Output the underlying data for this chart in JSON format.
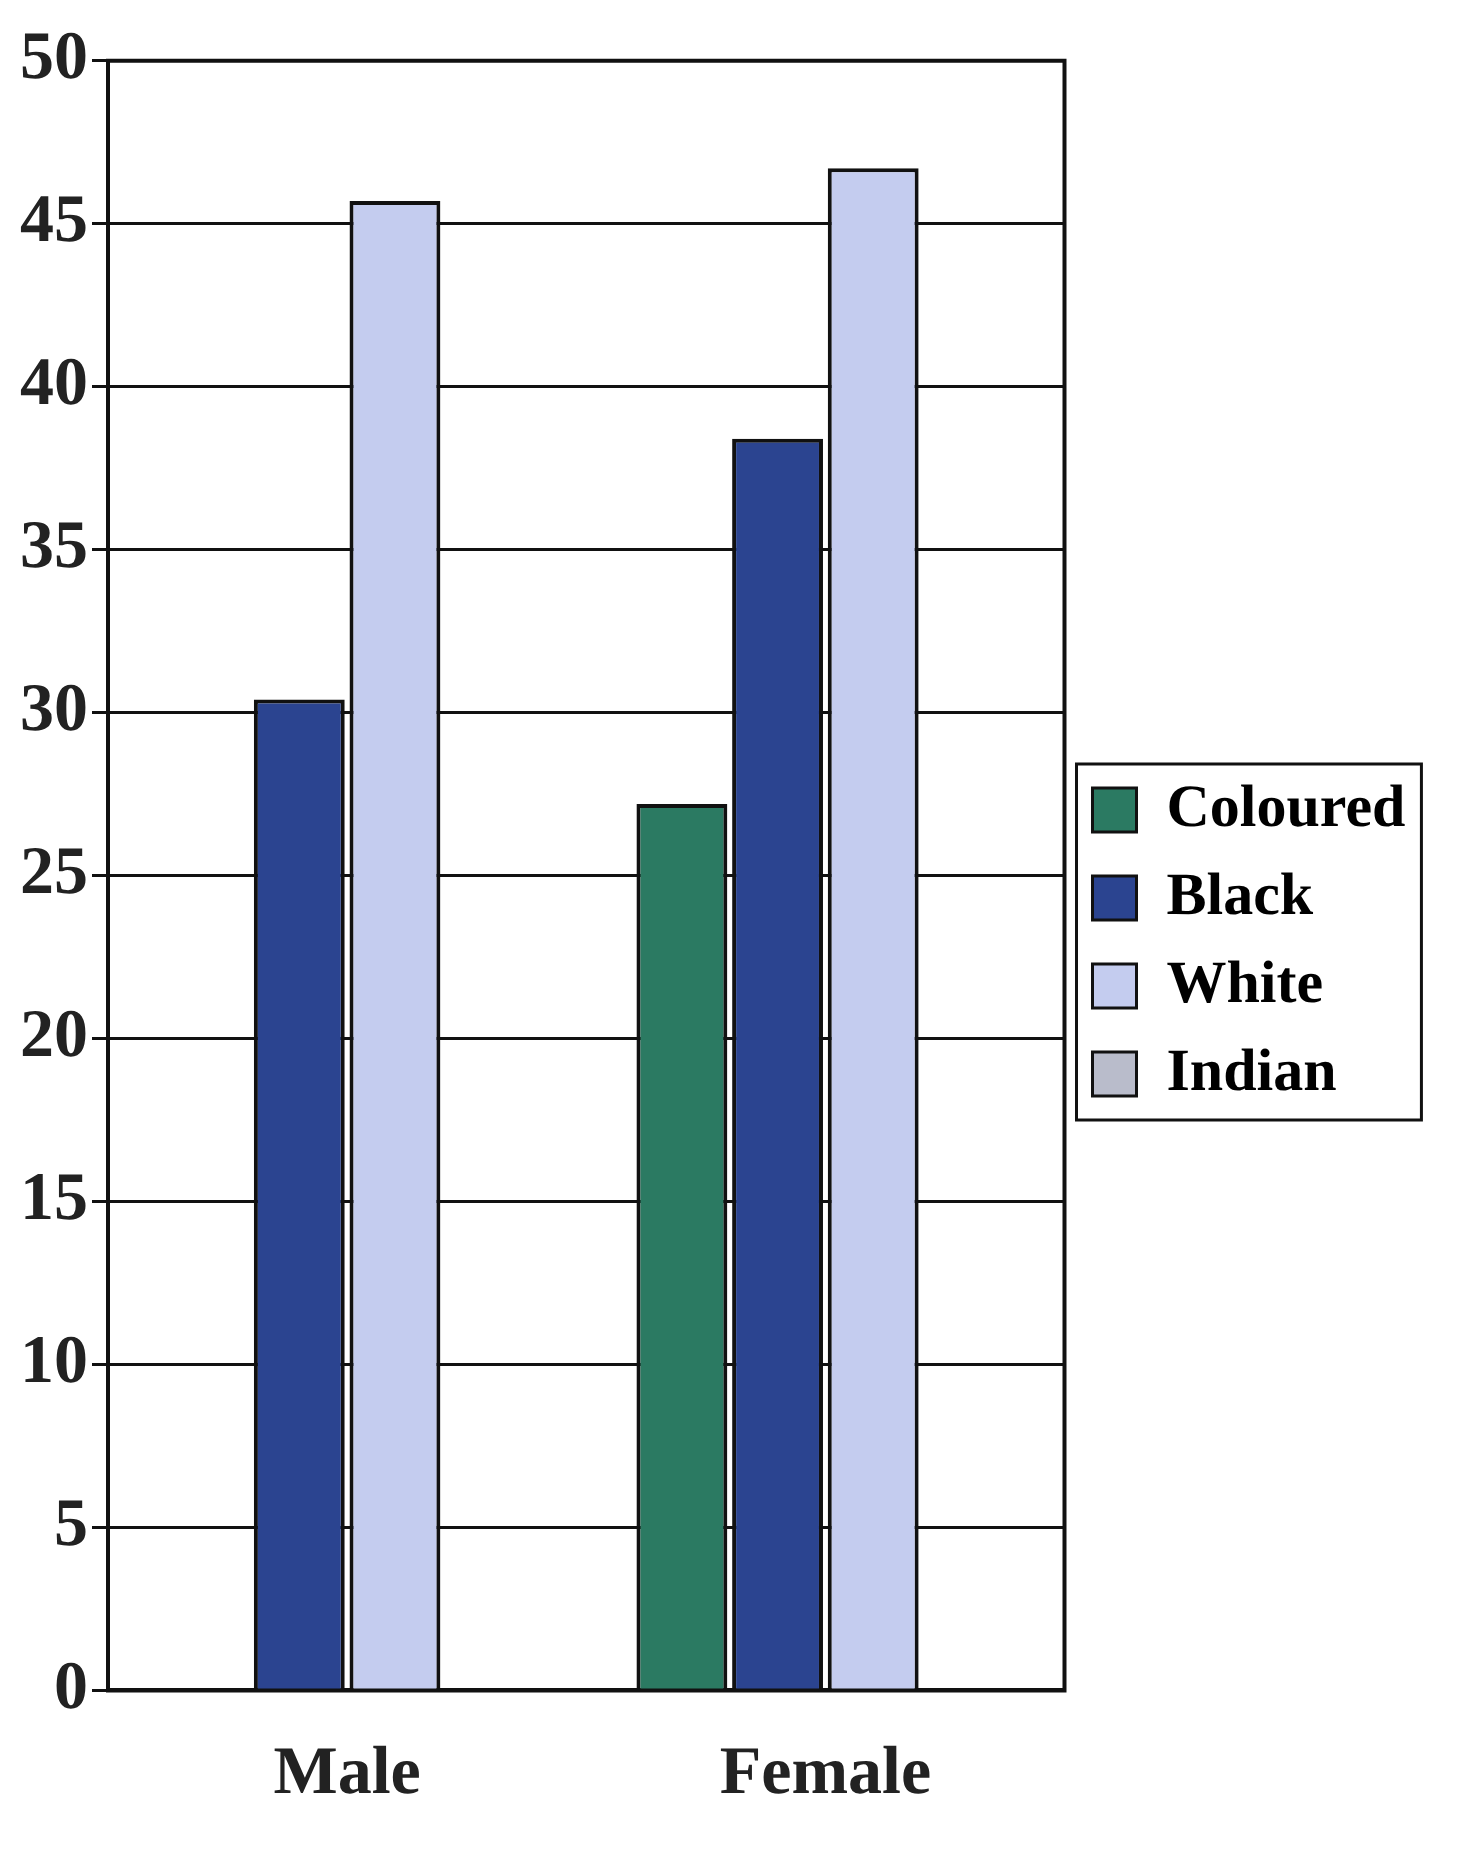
{
  "chart_data": {
    "type": "bar",
    "categories": [
      "Male",
      "Female"
    ],
    "series": [
      {
        "name": "Coloured",
        "color": "#2b7a62",
        "values": [
          0,
          27.2
        ]
      },
      {
        "name": "Black",
        "color": "#2b4490",
        "values": [
          30.4,
          38.4
        ]
      },
      {
        "name": "White",
        "color": "#c4ccef",
        "values": [
          45.7,
          46.7
        ]
      },
      {
        "name": "Indian",
        "color": "#b9bccb",
        "values": [
          0,
          0
        ]
      }
    ],
    "ylim": [
      0,
      50
    ],
    "yticks": [
      0,
      5,
      10,
      15,
      20,
      25,
      30,
      35,
      40,
      45,
      50
    ],
    "grid": "y",
    "legend": "right"
  }
}
